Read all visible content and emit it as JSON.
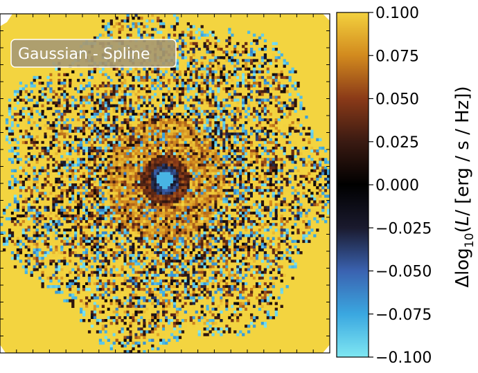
{
  "chart_data": {
    "type": "heatmap",
    "title": "",
    "xlabel": "",
    "ylabel": "",
    "annotation": "Gaussian - Spline",
    "colorbar": {
      "label_prefix": "Δlog",
      "label_sub": "10",
      "label_open": "(",
      "label_var": "L",
      "label_rest": "/ [erg / s / Hz])",
      "vmin": -0.1,
      "vmax": 0.1,
      "ticks": [
        0.1,
        0.075,
        0.05,
        0.025,
        0.0,
        -0.025,
        -0.05,
        -0.075,
        -0.1
      ],
      "tick_labels": [
        "0.100",
        "0.075",
        "0.050",
        "0.025",
        "0.000",
        "−0.025",
        "−0.050",
        "−0.075",
        "−0.100"
      ],
      "colors": [
        "#7fe7f2",
        "#3aa7e0",
        "#3a62b0",
        "#1a1a2e",
        "#000000",
        "#3a1a12",
        "#8a3a18",
        "#d28a1e",
        "#f3d13e"
      ]
    },
    "map": {
      "background_value": 0.1,
      "grid_resolution": 120,
      "center_value": 0.0,
      "description_values": {
        "outer_disk_values_range": [
          -0.1,
          0.1
        ],
        "inner_core_value": 0.08,
        "nucleus_value": -0.1
      }
    },
    "colors": {
      "background": "#f3d440",
      "annotation_box": "#a89a72"
    }
  }
}
